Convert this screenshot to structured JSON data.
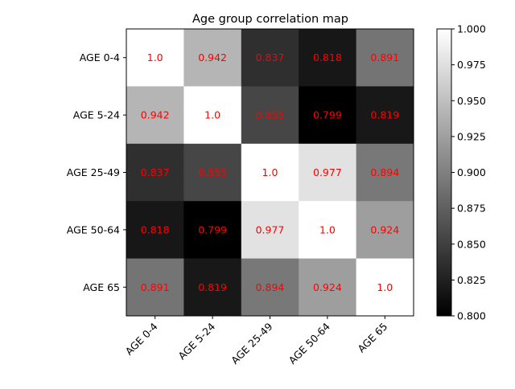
{
  "chart_data": {
    "type": "heatmap",
    "title": "Age group correlation map",
    "xlabel": "",
    "ylabel": "",
    "x_categories": [
      "AGE 0-4",
      "AGE 5-24",
      "AGE 25-49",
      "AGE 50-64",
      "AGE 65"
    ],
    "y_categories": [
      "AGE 0-4",
      "AGE 5-24",
      "AGE 25-49",
      "AGE 50-64",
      "AGE 65"
    ],
    "values": [
      [
        1.0,
        0.942,
        0.837,
        0.818,
        0.891
      ],
      [
        0.942,
        1.0,
        0.855,
        0.799,
        0.819
      ],
      [
        0.837,
        0.855,
        1.0,
        0.977,
        0.894
      ],
      [
        0.818,
        0.799,
        0.977,
        1.0,
        0.924
      ],
      [
        0.891,
        0.819,
        0.894,
        0.924,
        1.0
      ]
    ],
    "value_labels": [
      [
        "1.0",
        "0.942",
        "0.837",
        "0.818",
        "0.891"
      ],
      [
        "0.942",
        "1.0",
        "0.855",
        "0.799",
        "0.819"
      ],
      [
        "0.837",
        "0.855",
        "1.0",
        "0.977",
        "0.894"
      ],
      [
        "0.818",
        "0.799",
        "0.977",
        "1.0",
        "0.924"
      ],
      [
        "0.891",
        "0.819",
        "0.894",
        "0.924",
        "1.0"
      ]
    ],
    "colormap": "gray",
    "color_range": [
      0.8,
      1.0
    ],
    "colorbar_ticks": [
      "0.800",
      "0.825",
      "0.850",
      "0.875",
      "0.900",
      "0.925",
      "0.950",
      "0.975",
      "1.000"
    ],
    "colorbar_tick_values": [
      0.8,
      0.825,
      0.85,
      0.875,
      0.9,
      0.925,
      0.95,
      0.975,
      1.0
    ],
    "annotation_color": "#ff0000",
    "x_tick_rotation_deg": 45,
    "grid": false
  }
}
